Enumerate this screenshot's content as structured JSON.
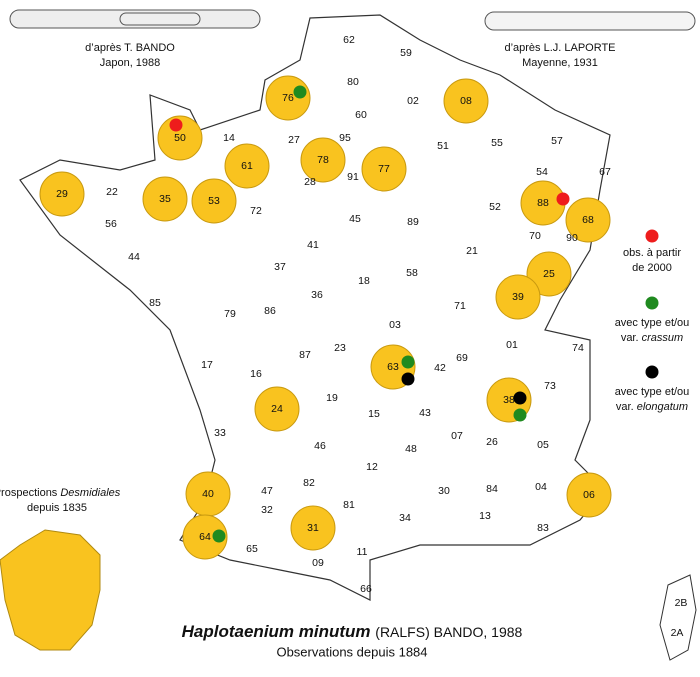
{
  "sources": [
    {
      "lines": [
        "d’après T. BANDO",
        "Japon, 1988"
      ]
    },
    {
      "lines": [
        "d’après L.J. LAPORTE",
        "Mayenne, 1931"
      ]
    }
  ],
  "highlight_color": "#f9c31f",
  "departments": [
    {
      "code": "62"
    },
    {
      "code": "59"
    },
    {
      "code": "80"
    },
    {
      "code": "02"
    },
    {
      "code": "08",
      "highlight": true
    },
    {
      "code": "76",
      "highlight": true,
      "obs": [
        1
      ]
    },
    {
      "code": "60"
    },
    {
      "code": "50",
      "highlight": true,
      "obs": [
        0
      ]
    },
    {
      "code": "14"
    },
    {
      "code": "27"
    },
    {
      "code": "95"
    },
    {
      "code": "78",
      "highlight": true
    },
    {
      "code": "91"
    },
    {
      "code": "77",
      "highlight": true
    },
    {
      "code": "51"
    },
    {
      "code": "55"
    },
    {
      "code": "57"
    },
    {
      "code": "67"
    },
    {
      "code": "61",
      "highlight": true
    },
    {
      "code": "28"
    },
    {
      "code": "29",
      "highlight": true
    },
    {
      "code": "22"
    },
    {
      "code": "35",
      "highlight": true
    },
    {
      "code": "53",
      "highlight": true
    },
    {
      "code": "72"
    },
    {
      "code": "54"
    },
    {
      "code": "88",
      "highlight": true,
      "obs": [
        0
      ]
    },
    {
      "code": "68",
      "highlight": true
    },
    {
      "code": "90"
    },
    {
      "code": "56"
    },
    {
      "code": "45"
    },
    {
      "code": "89"
    },
    {
      "code": "52"
    },
    {
      "code": "70"
    },
    {
      "code": "44"
    },
    {
      "code": "41"
    },
    {
      "code": "37"
    },
    {
      "code": "18"
    },
    {
      "code": "58"
    },
    {
      "code": "21"
    },
    {
      "code": "25",
      "highlight": true
    },
    {
      "code": "39",
      "highlight": true
    },
    {
      "code": "85"
    },
    {
      "code": "79"
    },
    {
      "code": "86"
    },
    {
      "code": "36"
    },
    {
      "code": "71"
    },
    {
      "code": "03"
    },
    {
      "code": "01"
    },
    {
      "code": "74"
    },
    {
      "code": "17"
    },
    {
      "code": "16"
    },
    {
      "code": "87"
    },
    {
      "code": "23"
    },
    {
      "code": "63",
      "highlight": true,
      "obs": [
        1,
        2
      ]
    },
    {
      "code": "42"
    },
    {
      "code": "69"
    },
    {
      "code": "73"
    },
    {
      "code": "38",
      "highlight": true,
      "obs": [
        2,
        1
      ]
    },
    {
      "code": "19"
    },
    {
      "code": "24",
      "highlight": true
    },
    {
      "code": "15"
    },
    {
      "code": "43"
    },
    {
      "code": "07"
    },
    {
      "code": "26"
    },
    {
      "code": "05"
    },
    {
      "code": "33"
    },
    {
      "code": "47"
    },
    {
      "code": "46"
    },
    {
      "code": "12"
    },
    {
      "code": "48"
    },
    {
      "code": "30"
    },
    {
      "code": "84"
    },
    {
      "code": "04"
    },
    {
      "code": "06",
      "highlight": true
    },
    {
      "code": "40",
      "highlight": true
    },
    {
      "code": "32"
    },
    {
      "code": "82"
    },
    {
      "code": "81"
    },
    {
      "code": "34"
    },
    {
      "code": "13"
    },
    {
      "code": "83"
    },
    {
      "code": "64",
      "highlight": true,
      "obs": [
        1
      ]
    },
    {
      "code": "65"
    },
    {
      "code": "31",
      "highlight": true
    },
    {
      "code": "11"
    },
    {
      "code": "09"
    },
    {
      "code": "66"
    },
    {
      "code": "2B"
    },
    {
      "code": "2A"
    }
  ],
  "legend": [
    {
      "color": "#ee1c1c",
      "lines": [
        "obs. à partir",
        "de 2000"
      ]
    },
    {
      "color": "#1f8a1f",
      "line1": "avec type et/ou",
      "prefix": "var.",
      "taxon": "crassum"
    },
    {
      "color": "#000000",
      "line1": "avec type et/ou",
      "prefix": "var.",
      "taxon": "elongatum"
    }
  ],
  "inset": {
    "word": "Prospections",
    "taxon": "Desmidiales",
    "line2": "depuis 1835"
  },
  "title": {
    "species": "Haplotaenium minutum",
    "rest": "(RALFS) BANDO, 1988",
    "subtitle": "Observations depuis 1884"
  }
}
